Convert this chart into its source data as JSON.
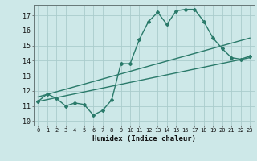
{
  "xlabel": "Humidex (Indice chaleur)",
  "ylabel": "",
  "bg_color": "#cde8e8",
  "grid_color": "#aacccc",
  "line_color": "#2a7a6a",
  "xlim": [
    -0.5,
    23.5
  ],
  "ylim": [
    9.7,
    17.7
  ],
  "xticks": [
    0,
    1,
    2,
    3,
    4,
    5,
    6,
    7,
    8,
    9,
    10,
    11,
    12,
    13,
    14,
    15,
    16,
    17,
    18,
    19,
    20,
    21,
    22,
    23
  ],
  "yticks": [
    10,
    11,
    12,
    13,
    14,
    15,
    16,
    17
  ],
  "curve_x": [
    0,
    1,
    2,
    3,
    4,
    5,
    6,
    7,
    8,
    9,
    10,
    11,
    12,
    13,
    14,
    15,
    16,
    17,
    18,
    19,
    20,
    21,
    22,
    23
  ],
  "curve_y": [
    11.3,
    11.8,
    11.5,
    11.0,
    11.2,
    11.1,
    10.4,
    10.7,
    11.4,
    13.8,
    13.8,
    15.4,
    16.6,
    17.2,
    16.4,
    17.3,
    17.4,
    17.4,
    16.6,
    15.5,
    14.8,
    14.2,
    14.1,
    14.3
  ],
  "line1_x": [
    0,
    23
  ],
  "line1_y": [
    11.3,
    14.2
  ],
  "line2_x": [
    0,
    23
  ],
  "line2_y": [
    11.6,
    15.5
  ]
}
